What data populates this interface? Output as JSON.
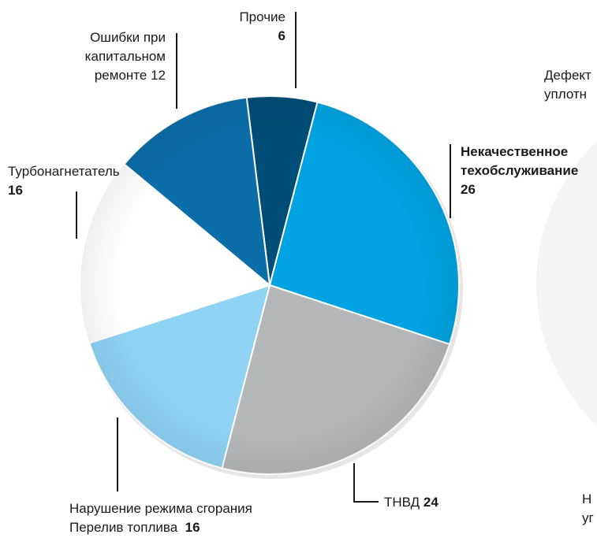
{
  "chart_data": {
    "type": "pie",
    "title": "",
    "slices": [
      {
        "label": "Прочие",
        "value": 6,
        "color": "#004e78"
      },
      {
        "label": "Некачественное техобслуживание",
        "value": 26,
        "color": "#00a2e1"
      },
      {
        "label": "ТНВД",
        "value": 24,
        "color": "#b5b6b8"
      },
      {
        "label": "Нарушение режима сгорания Перелив топлива",
        "value": 16,
        "color": "#8fd2f4"
      },
      {
        "label": "Турбонагнетатель",
        "value": 16,
        "color": "#ffffff"
      },
      {
        "label": "Ошибки при капитальном ремонте",
        "value": 12,
        "color": "#0b6ea8"
      }
    ]
  },
  "labels": {
    "prochie": {
      "line1": "Прочие",
      "value": "6"
    },
    "nekach": {
      "line1": "Некачественное",
      "line2": "техобслуживание",
      "value": "26"
    },
    "tnvd": {
      "text": "ТНВД",
      "value": "24"
    },
    "narush": {
      "line1": "Нарушение режима сгорания",
      "line2": "Перелив топлива",
      "value": "16"
    },
    "turbo": {
      "line1": "Турбонагнетатель",
      "value": "16"
    },
    "oshibki": {
      "line1": "Ошибки при",
      "line2": "капитальном",
      "line3": "ремонте",
      "value": "12"
    }
  },
  "cropped": {
    "defekt": {
      "line1": "Дефект",
      "line2": "уплотн"
    },
    "bottom_right": {
      "line1": "Н",
      "line2": "уг"
    }
  }
}
